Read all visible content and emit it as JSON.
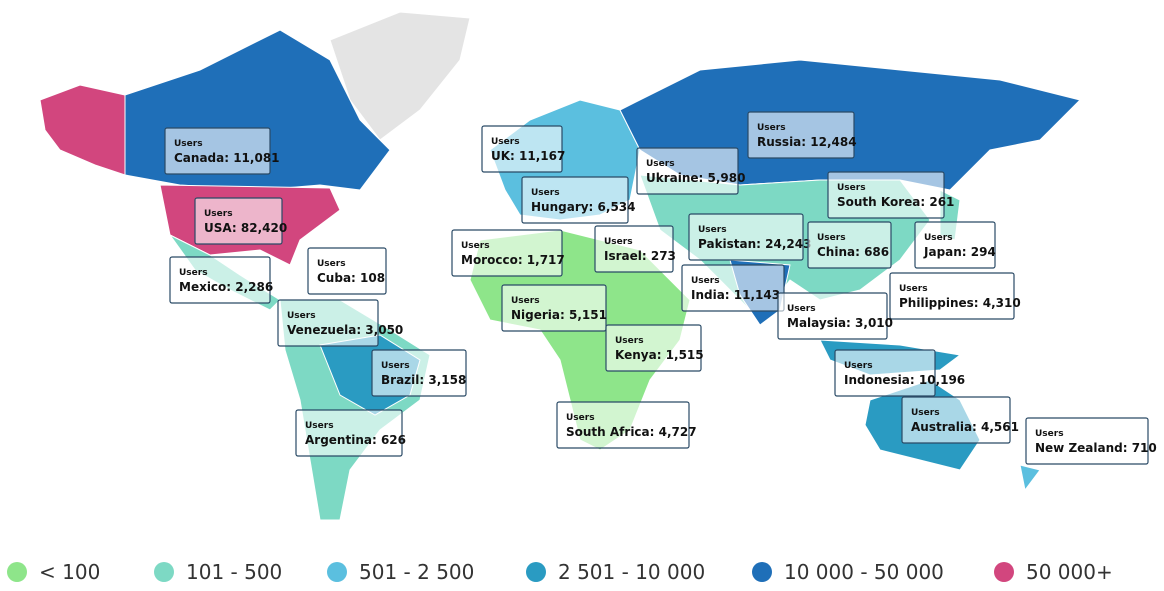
{
  "callouts": [
    {
      "caption": "Users",
      "text": "Canada: 11,081"
    },
    {
      "caption": "Users",
      "text": "UK: 11,167"
    },
    {
      "caption": "Users",
      "text": "Russia: 12,484"
    },
    {
      "caption": "Users",
      "text": "Ukraine: 5,980"
    },
    {
      "caption": "Users",
      "text": "Hungary: 6,534"
    },
    {
      "caption": "Users",
      "text": "South Korea: 261"
    },
    {
      "caption": "Users",
      "text": "USA: 82,420"
    },
    {
      "caption": "Users",
      "text": "Israel: 273"
    },
    {
      "caption": "Users",
      "text": "Pakistan: 24,243"
    },
    {
      "caption": "Users",
      "text": "China: 686"
    },
    {
      "caption": "Users",
      "text": "Japan: 294"
    },
    {
      "caption": "Users",
      "text": "Morocco: 1,717"
    },
    {
      "caption": "Users",
      "text": "Mexico: 2,286"
    },
    {
      "caption": "Users",
      "text": "Cuba: 108"
    },
    {
      "caption": "Users",
      "text": "India: 11,143"
    },
    {
      "caption": "Users",
      "text": "Philippines: 4,310"
    },
    {
      "caption": "Users",
      "text": "Venezuela: 3,050"
    },
    {
      "caption": "Users",
      "text": "Nigeria: 5,151"
    },
    {
      "caption": "Users",
      "text": "Malaysia: 3,010"
    },
    {
      "caption": "Users",
      "text": "Kenya: 1,515"
    },
    {
      "caption": "Users",
      "text": "Brazil: 3,158"
    },
    {
      "caption": "Users",
      "text": "Indonesia: 10,196"
    },
    {
      "caption": "Users",
      "text": "South Africa: 4,727"
    },
    {
      "caption": "Users",
      "text": "Australia: 4,561"
    },
    {
      "caption": "Users",
      "text": "Argentina: 626"
    },
    {
      "caption": "Users",
      "text": "New Zealand: 710"
    }
  ],
  "legend": [
    {
      "label": "< 100",
      "color": "#8ee58a"
    },
    {
      "label": "101 - 500",
      "color": "#7dd9c4"
    },
    {
      "label": "501 - 2 500",
      "color": "#5bbfdf"
    },
    {
      "label": "2 501 - 10 000",
      "color": "#2a9bc2"
    },
    {
      "label": "10 000 - 50 000",
      "color": "#1f6fb8"
    },
    {
      "label": "50 000+",
      "color": "#d2467e"
    }
  ]
}
